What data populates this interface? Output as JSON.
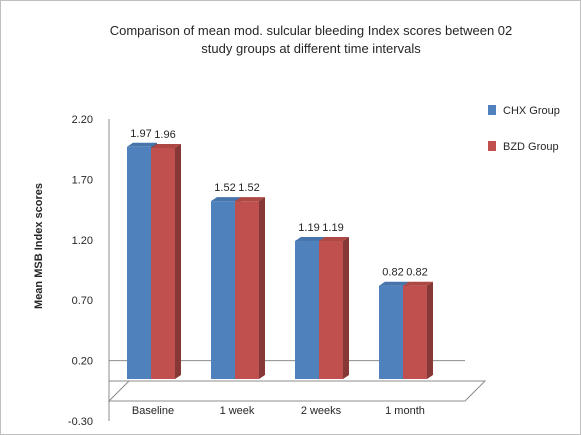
{
  "chart_data": {
    "type": "bar",
    "title_lines": [
      "Comparison of mean mod. sulcular bleeding Index scores between 02",
      "study groups at different time intervals"
    ],
    "ylabel": "Mean MSB Index scores",
    "xlabel": "",
    "ylim": [
      -0.3,
      2.2
    ],
    "yticks": [
      "2.20",
      "1.70",
      "1.20",
      "0.70",
      "0.20",
      "-0.30"
    ],
    "categories": [
      "Baseline",
      "1 week",
      "2 weeks",
      "1 month"
    ],
    "series": [
      {
        "name": "CHX Group",
        "values": [
          1.97,
          1.52,
          1.19,
          0.82
        ],
        "labels": [
          "1.97",
          "1.52",
          "1.19",
          "0.82"
        ],
        "color": "#4f81bd"
      },
      {
        "name": "BZD Group",
        "values": [
          1.96,
          1.52,
          1.19,
          0.82
        ],
        "labels": [
          "1.96",
          "1.52",
          "1.19",
          "0.82"
        ],
        "color": "#c0504d"
      }
    ],
    "legend_position": "right",
    "grid": false,
    "bar_style": "3d"
  }
}
